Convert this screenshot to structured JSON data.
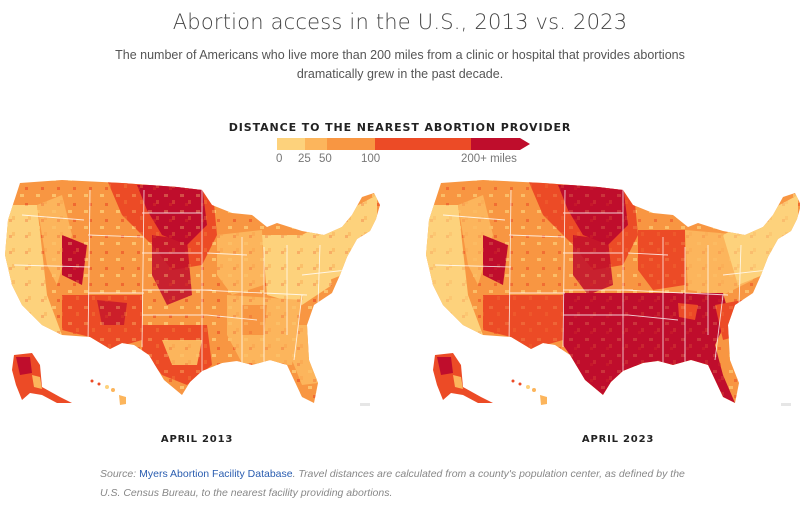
{
  "header": {
    "title": "Abortion access in the U.S., 2013 vs. 2023",
    "subtitle": "The number of Americans who live more than 200 miles from a clinic or hospital that provides abortions dramatically grew in the past decade."
  },
  "legend": {
    "title": "DISTANCE TO THE NEAREST ABORTION PROVIDER",
    "bins": [
      {
        "label": "0",
        "color": "#fdd27c"
      },
      {
        "label": "25",
        "color": "#fcb55c"
      },
      {
        "label": "50",
        "color": "#f89642"
      },
      {
        "label": "100",
        "color": "#ec4b26"
      },
      {
        "label": "200+ miles",
        "color": "#bf0d2c"
      }
    ]
  },
  "maps": [
    {
      "caption": "APRIL 2013"
    },
    {
      "caption": "APRIL 2023"
    }
  ],
  "source": {
    "prefix": "Source: ",
    "link_text": "Myers Abortion Facility Database",
    "suffix": ". Travel distances are calculated from a county's population center, as defined by the U.S. Census Bureau, to the nearest facility providing abortions."
  }
}
